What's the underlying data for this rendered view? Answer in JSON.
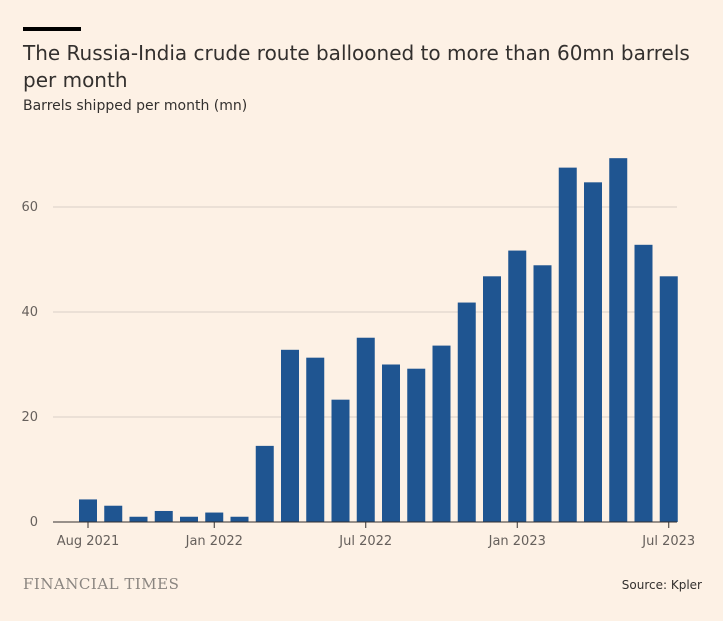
{
  "title": "The Russia-India crude route ballooned to more than 60mn barrels per month",
  "subtitle": "Barrels shipped per month (mn)",
  "source": "Source: Kpler",
  "logo": "FINANCIAL TIMES",
  "colors": {
    "bar": "#1f5591",
    "background": "#fdf1e5",
    "grid": "#d9cfc6"
  },
  "chart_data": {
    "type": "bar",
    "title": "The Russia-India crude route ballooned to more than 60mn barrels per month",
    "subtitle": "Barrels shipped per month (mn)",
    "xlabel": "",
    "ylabel": "",
    "ylim": [
      0,
      70
    ],
    "y_ticks": [
      0,
      20,
      40,
      60
    ],
    "grid": true,
    "x_tick_labels": [
      "Aug 2021",
      "Jan 2022",
      "Jul 2022",
      "Jan 2023",
      "Jul 2023"
    ],
    "x_tick_categories": [
      "2021-08",
      "2022-01",
      "2022-07",
      "2023-01",
      "2023-07"
    ],
    "categories": [
      "2021-08",
      "2021-09",
      "2021-10",
      "2021-11",
      "2021-12",
      "2022-01",
      "2022-02",
      "2022-03",
      "2022-04",
      "2022-05",
      "2022-06",
      "2022-07",
      "2022-08",
      "2022-09",
      "2022-10",
      "2022-11",
      "2022-12",
      "2023-01",
      "2023-02",
      "2023-03",
      "2023-04",
      "2023-05",
      "2023-06",
      "2023-07"
    ],
    "values": [
      4.3,
      3.1,
      1.0,
      2.1,
      1.0,
      1.8,
      1.0,
      14.5,
      32.8,
      31.3,
      23.3,
      35.1,
      30.0,
      29.2,
      33.6,
      41.8,
      46.8,
      51.7,
      48.9,
      67.5,
      64.7,
      69.3,
      52.8,
      46.8
    ]
  }
}
